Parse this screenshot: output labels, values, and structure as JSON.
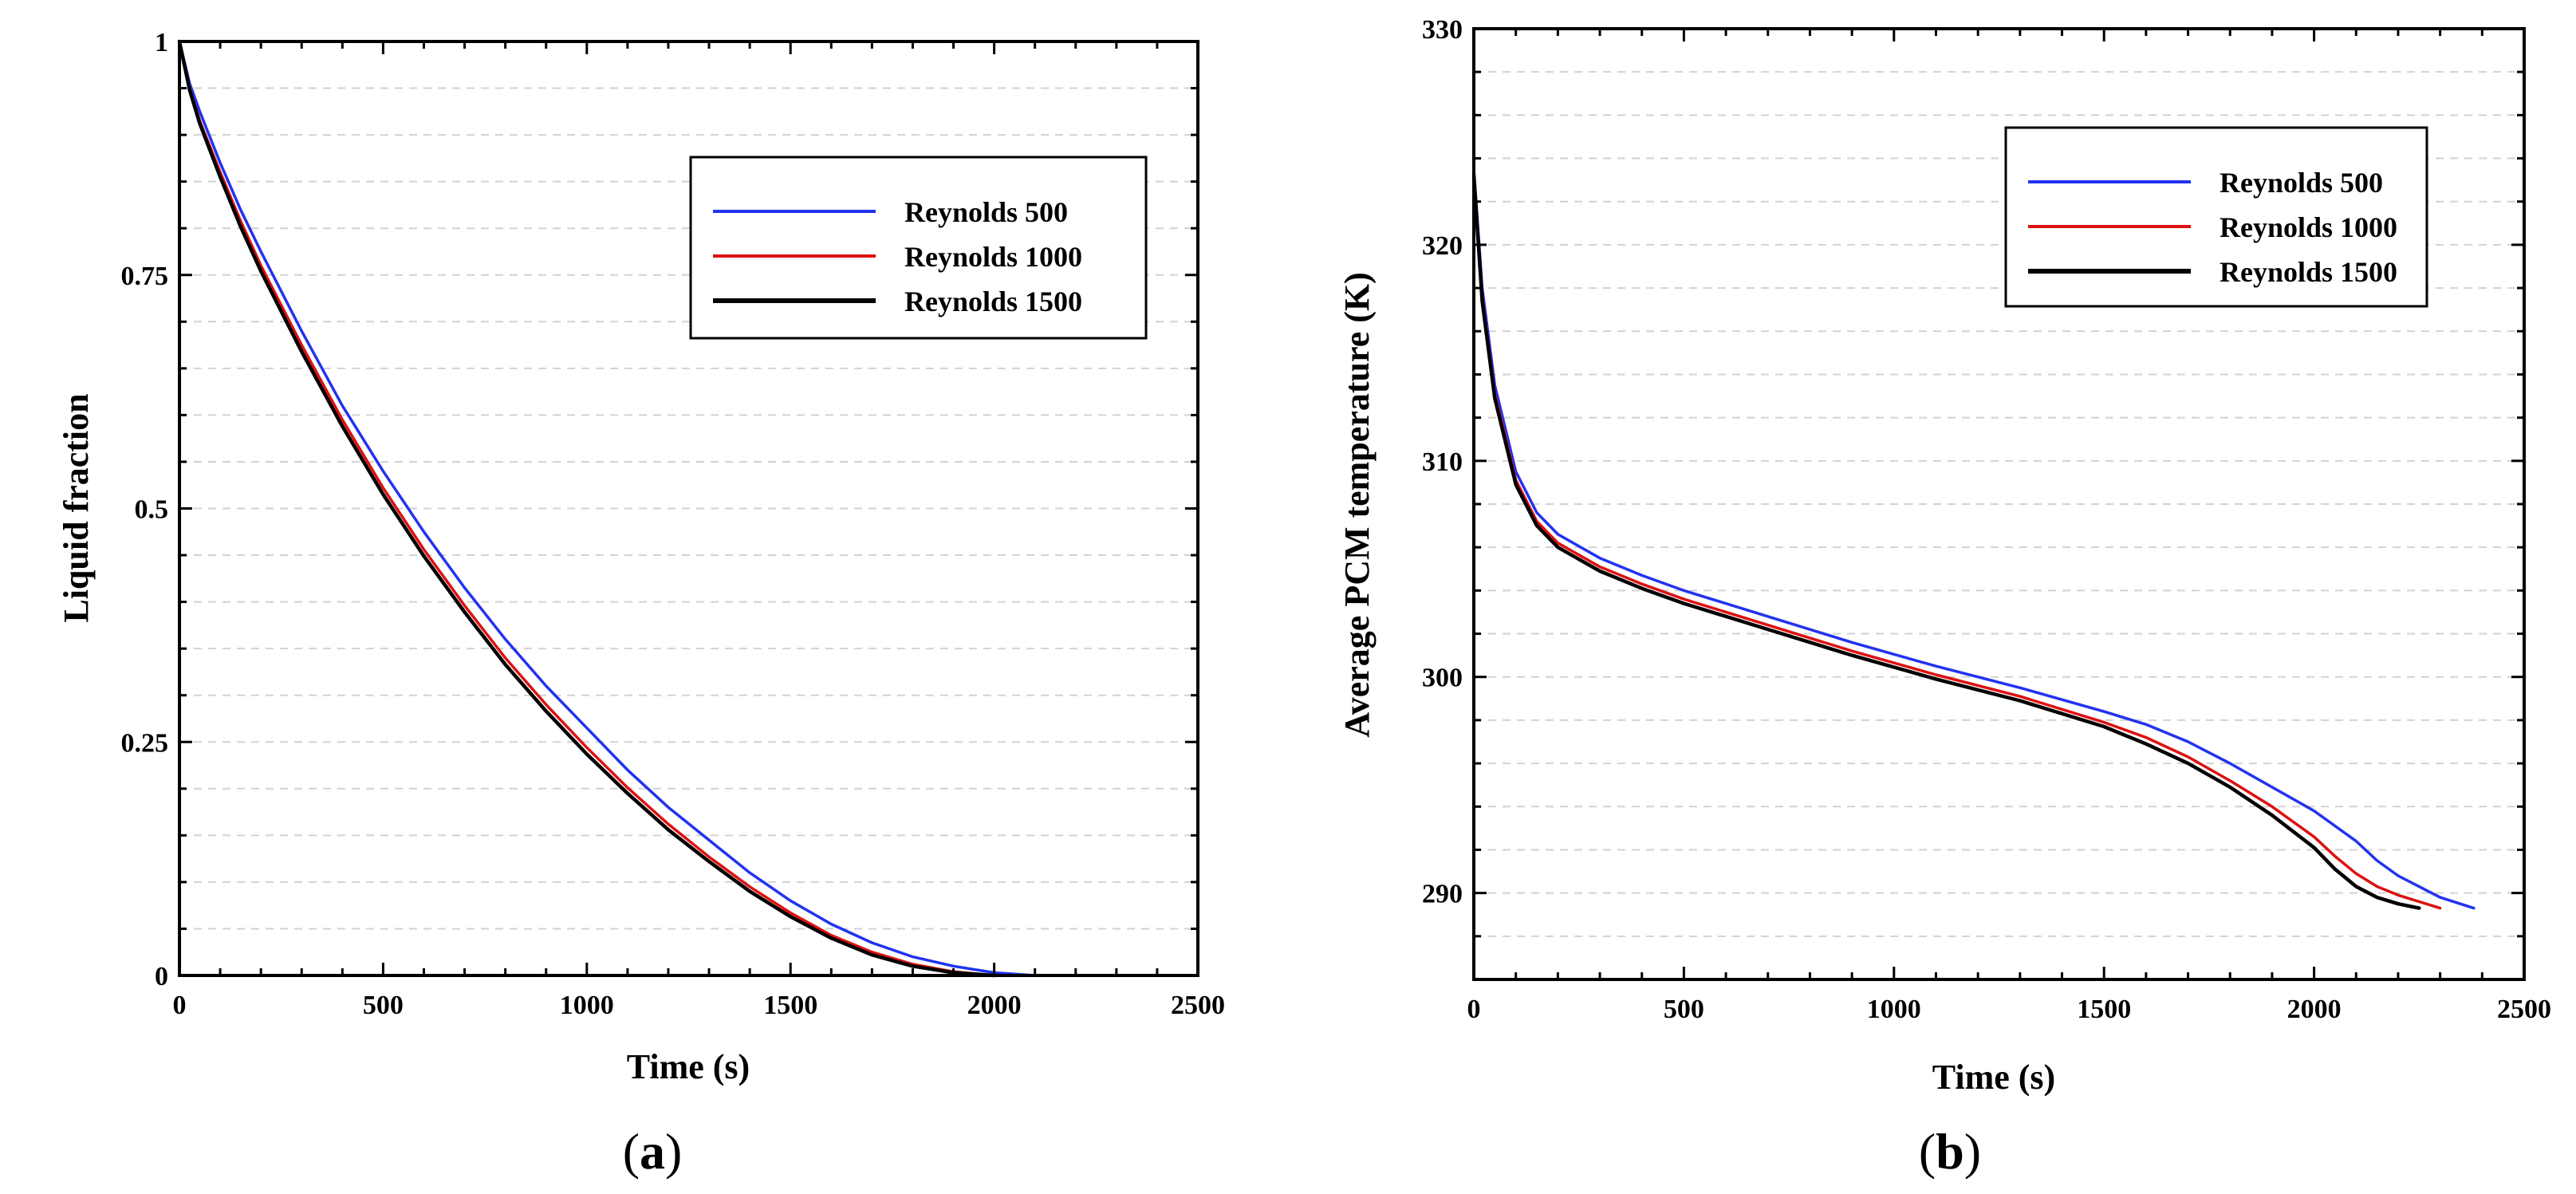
{
  "chart_data": [
    {
      "type": "line",
      "panel_label": "a",
      "xlabel": "Time (s)",
      "ylabel": "Liquid fraction",
      "xlim": [
        0,
        2500
      ],
      "ylim": [
        0,
        1
      ],
      "xticks": [
        0,
        500,
        1000,
        1500,
        2000,
        2500
      ],
      "yticks": [
        0,
        0.25,
        0.5,
        0.75,
        1
      ],
      "ytick_labels": [
        "0",
        "0.25",
        "0.5",
        "0.75",
        "1"
      ],
      "legend_position": "upper-right",
      "series": [
        {
          "name": "Reynolds 500",
          "color": "#2233ee",
          "x": [
            0,
            25,
            50,
            100,
            150,
            200,
            300,
            400,
            500,
            600,
            700,
            800,
            900,
            1000,
            1100,
            1200,
            1300,
            1400,
            1500,
            1600,
            1700,
            1800,
            1900,
            2000,
            2100,
            2200
          ],
          "y": [
            1.0,
            0.955,
            0.925,
            0.87,
            0.82,
            0.775,
            0.69,
            0.61,
            0.54,
            0.475,
            0.415,
            0.36,
            0.31,
            0.265,
            0.22,
            0.18,
            0.145,
            0.11,
            0.08,
            0.055,
            0.035,
            0.02,
            0.01,
            0.003,
            0.0,
            0.0
          ]
        },
        {
          "name": "Reynolds 1000",
          "color": "#dd1111",
          "x": [
            0,
            25,
            50,
            100,
            150,
            200,
            300,
            400,
            500,
            600,
            700,
            800,
            900,
            1000,
            1100,
            1200,
            1300,
            1400,
            1500,
            1600,
            1700,
            1800,
            1900,
            2000,
            2050
          ],
          "y": [
            1.0,
            0.95,
            0.915,
            0.86,
            0.808,
            0.76,
            0.675,
            0.595,
            0.522,
            0.456,
            0.396,
            0.34,
            0.29,
            0.244,
            0.201,
            0.162,
            0.127,
            0.095,
            0.067,
            0.043,
            0.025,
            0.012,
            0.004,
            0.0,
            0.0
          ]
        },
        {
          "name": "Reynolds 1500",
          "color": "#000000",
          "x": [
            0,
            25,
            50,
            100,
            150,
            200,
            300,
            400,
            500,
            600,
            700,
            800,
            900,
            1000,
            1100,
            1200,
            1300,
            1400,
            1500,
            1600,
            1700,
            1800,
            1900,
            2000
          ],
          "y": [
            1.0,
            0.948,
            0.912,
            0.855,
            0.802,
            0.754,
            0.668,
            0.588,
            0.515,
            0.449,
            0.389,
            0.333,
            0.283,
            0.237,
            0.195,
            0.156,
            0.122,
            0.09,
            0.063,
            0.04,
            0.022,
            0.01,
            0.003,
            0.0
          ]
        }
      ]
    },
    {
      "type": "line",
      "panel_label": "b",
      "xlabel": "Time (s)",
      "ylabel": "Average PCM temperature (K)",
      "xlim": [
        0,
        2500
      ],
      "ylim": [
        286,
        330
      ],
      "xticks": [
        0,
        500,
        1000,
        1500,
        2000,
        2500
      ],
      "yticks": [
        290,
        300,
        310,
        320,
        330
      ],
      "ytick_labels": [
        "290",
        "300",
        "310",
        "320",
        "330"
      ],
      "legend_position": "upper-right",
      "series": [
        {
          "name": "Reynolds 500",
          "color": "#2233ee",
          "x": [
            0,
            20,
            50,
            100,
            150,
            200,
            300,
            400,
            500,
            700,
            900,
            1100,
            1300,
            1500,
            1600,
            1700,
            1800,
            1900,
            2000,
            2100,
            2150,
            2200,
            2300,
            2380
          ],
          "y": [
            323.5,
            318,
            313.5,
            309.5,
            307.6,
            306.6,
            305.5,
            304.7,
            304.0,
            302.8,
            301.6,
            300.5,
            299.5,
            298.4,
            297.8,
            297.0,
            296.0,
            294.9,
            293.8,
            292.4,
            291.5,
            290.8,
            289.8,
            289.3
          ]
        },
        {
          "name": "Reynolds 1000",
          "color": "#dd1111",
          "x": [
            0,
            20,
            50,
            100,
            150,
            200,
            300,
            400,
            500,
            700,
            900,
            1100,
            1300,
            1500,
            1600,
            1700,
            1800,
            1900,
            2000,
            2050,
            2100,
            2150,
            2200,
            2300
          ],
          "y": [
            323.3,
            317.6,
            313.1,
            309.1,
            307.2,
            306.2,
            305.1,
            304.3,
            303.6,
            302.4,
            301.2,
            300.1,
            299.1,
            297.9,
            297.2,
            296.3,
            295.2,
            294.0,
            292.6,
            291.7,
            290.9,
            290.3,
            289.9,
            289.3
          ]
        },
        {
          "name": "Reynolds 1500",
          "color": "#000000",
          "x": [
            0,
            20,
            50,
            100,
            150,
            200,
            300,
            400,
            500,
            700,
            900,
            1100,
            1300,
            1500,
            1600,
            1700,
            1800,
            1900,
            2000,
            2050,
            2100,
            2150,
            2200,
            2250
          ],
          "y": [
            323.2,
            317.4,
            312.9,
            308.9,
            307.0,
            306.0,
            304.9,
            304.1,
            303.4,
            302.2,
            301.0,
            299.9,
            298.9,
            297.7,
            296.9,
            296.0,
            294.9,
            293.6,
            292.1,
            291.1,
            290.3,
            289.8,
            289.5,
            289.3
          ]
        }
      ]
    }
  ],
  "colors": {
    "frame": "#000000",
    "grid": "#d2d2d2"
  }
}
